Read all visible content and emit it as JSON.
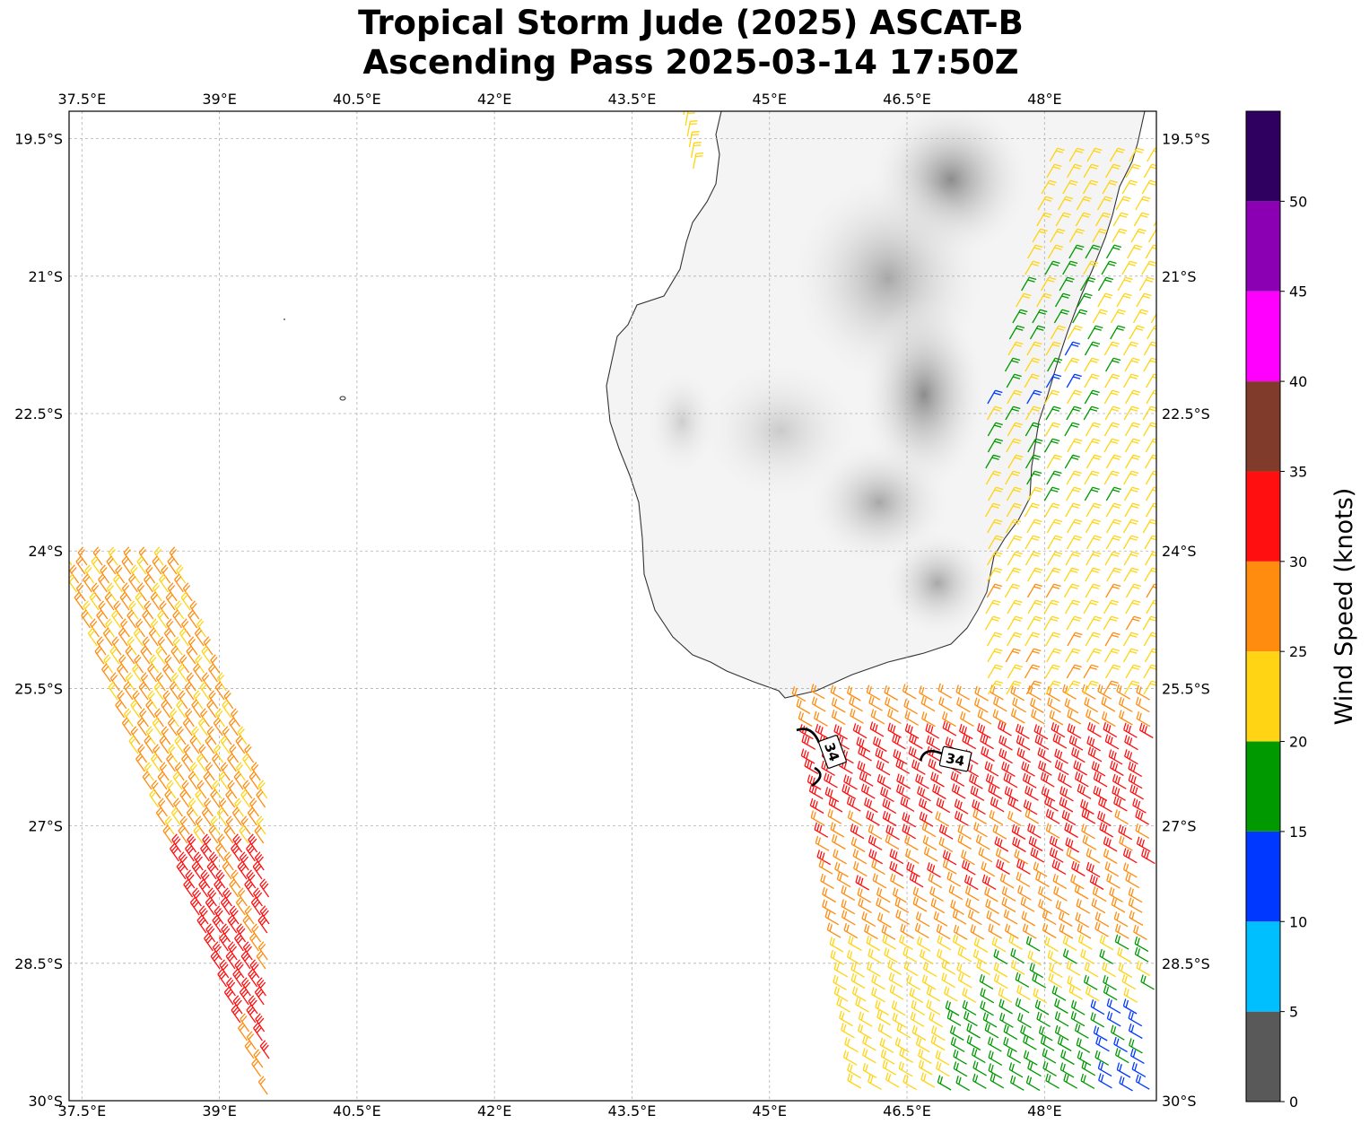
{
  "title": {
    "line1": "Tropical Storm Jude (2025) ASCAT-B",
    "line2": "Ascending Pass 2025-03-14 17:50Z"
  },
  "map": {
    "lon_range": [
      37.36,
      49.22
    ],
    "lat_range": [
      -30.0,
      -19.2
    ],
    "lon_ticks": [
      37.5,
      39,
      40.5,
      42,
      43.5,
      45,
      46.5,
      48
    ],
    "lon_tick_labels": [
      "37.5°E",
      "39°E",
      "40.5°E",
      "42°E",
      "43.5°E",
      "45°E",
      "46.5°E",
      "48°E"
    ],
    "lat_ticks": [
      -19.5,
      -21,
      -22.5,
      -24,
      -25.5,
      -27,
      -28.5,
      -30
    ],
    "lat_tick_labels": [
      "19.5°S",
      "21°S",
      "22.5°S",
      "24°S",
      "25.5°S",
      "27°S",
      "28.5°S",
      "30°S"
    ],
    "gridlines": true,
    "land": "Madagascar (southern part, grayscale topography)",
    "wind_barbs": "ASCAT-B scatterometer wind barbs colored by speed"
  },
  "contours": [
    {
      "label": "34",
      "value_knots": 34,
      "rotation": 70
    },
    {
      "label": "34",
      "value_knots": 34,
      "rotation": 12
    }
  ],
  "colorbar": {
    "title": "Wind Speed (knots)",
    "tick_labels": [
      "0",
      "5",
      "10",
      "15",
      "20",
      "25",
      "30",
      "35",
      "40",
      "45",
      "50"
    ],
    "bins": [
      {
        "from": 0,
        "to": 5,
        "color": "#595959"
      },
      {
        "from": 5,
        "to": 10,
        "color": "#00bfff"
      },
      {
        "from": 10,
        "to": 15,
        "color": "#0038ff"
      },
      {
        "from": 15,
        "to": 20,
        "color": "#009900"
      },
      {
        "from": 20,
        "to": 25,
        "color": "#ffd414"
      },
      {
        "from": 25,
        "to": 30,
        "color": "#ff8c0f"
      },
      {
        "from": 30,
        "to": 35,
        "color": "#ff0f0f"
      },
      {
        "from": 35,
        "to": 40,
        "color": "#803b2b"
      },
      {
        "from": 40,
        "to": 45,
        "color": "#ff00ff"
      },
      {
        "from": 45,
        "to": 50,
        "color": "#8c00b3"
      },
      {
        "from": 50,
        "to": 55,
        "color": "#300060"
      }
    ]
  }
}
